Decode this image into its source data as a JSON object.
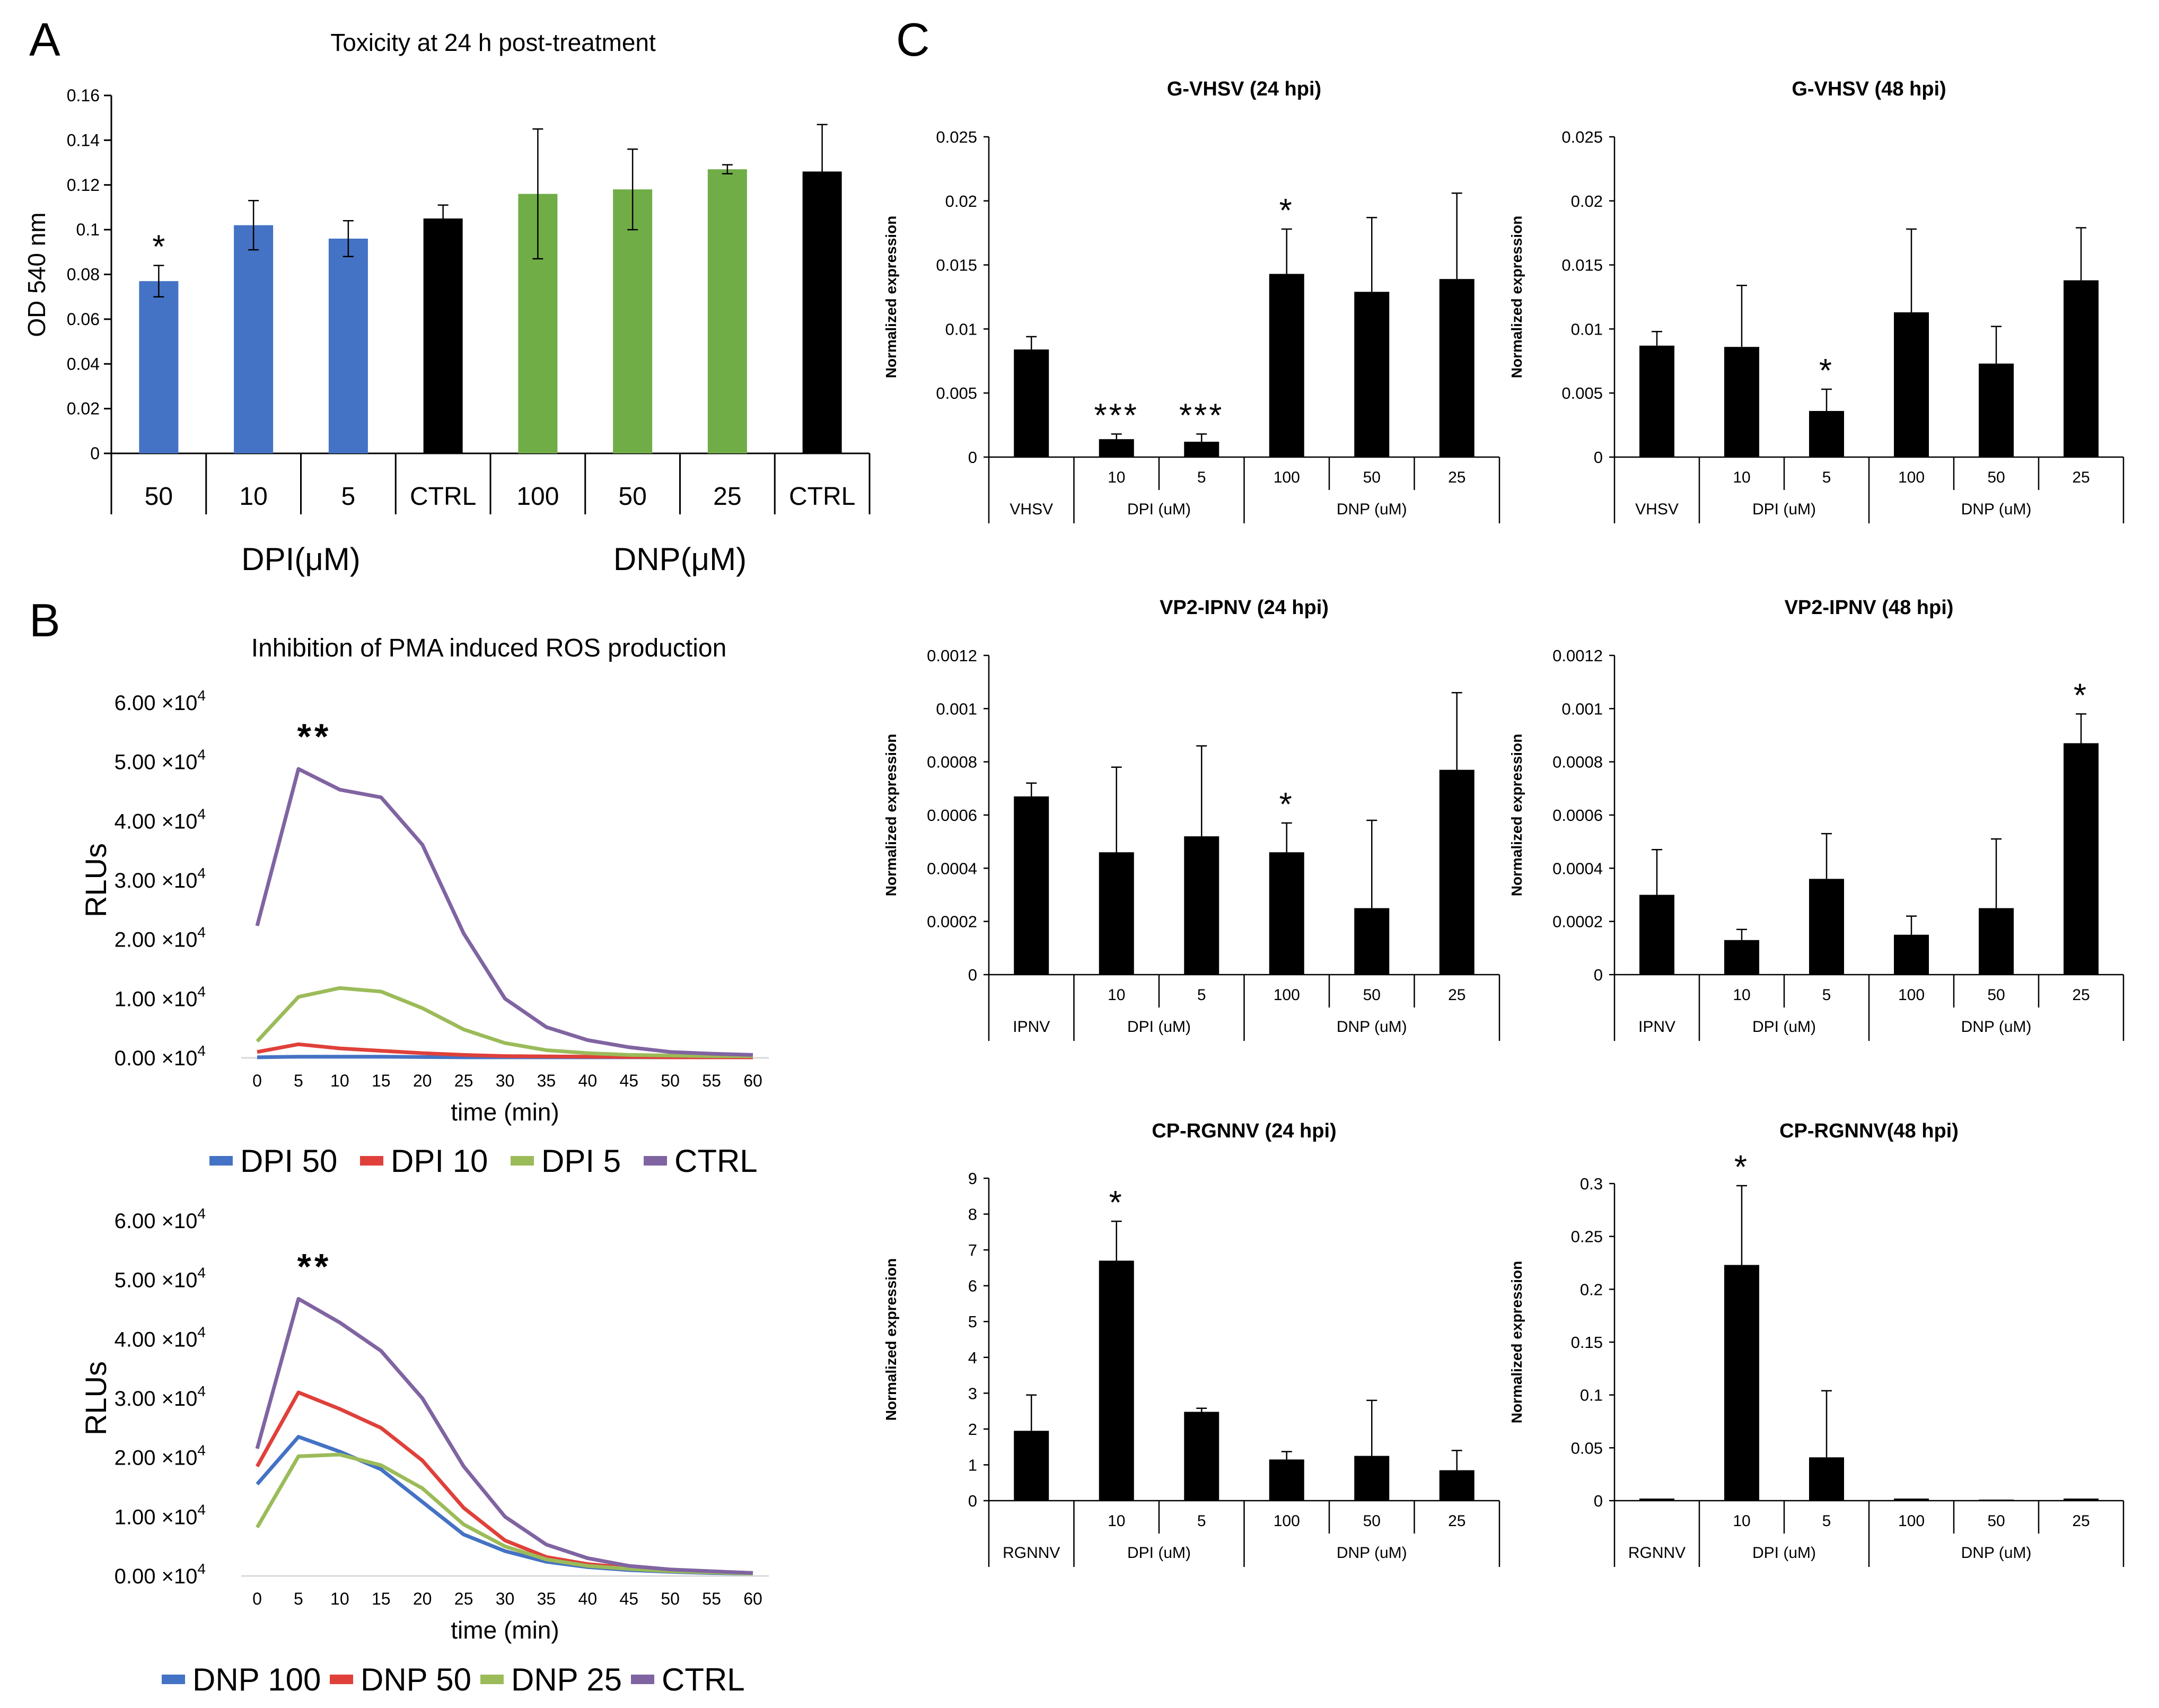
{
  "panel_labels": [
    "A",
    "B",
    "C"
  ],
  "chart_data": [
    {
      "id": "A",
      "type": "bar",
      "title": "Toxicity at 24 h post-treatment",
      "ylabel": "OD 540 nm",
      "ylim": [
        0,
        0.16
      ],
      "yticks": [
        "0",
        "0.02",
        "0.04",
        "0.06",
        "0.08",
        "0.1",
        "0.12",
        "0.14",
        "0.16"
      ],
      "categories": [
        "50",
        "10",
        "5",
        "CTRL",
        "100",
        "50",
        "25",
        "CTRL"
      ],
      "values": [
        0.077,
        0.102,
        0.096,
        0.105,
        0.116,
        0.118,
        0.127,
        0.126
      ],
      "errors": [
        0.007,
        0.011,
        0.008,
        0.006,
        0.029,
        0.018,
        0.002,
        0.021
      ],
      "colors": [
        "#4472c4",
        "#4472c4",
        "#4472c4",
        "#000000",
        "#70ad47",
        "#70ad47",
        "#70ad47",
        "#000000"
      ],
      "stars": [
        "*",
        "",
        "",
        "",
        "",
        "",
        "",
        ""
      ],
      "groups": [
        {
          "label": "DPI(μM)",
          "span": [
            0,
            3
          ]
        },
        {
          "label": "DNP(μM)",
          "span": [
            4,
            7
          ]
        }
      ]
    },
    {
      "id": "B1",
      "type": "line",
      "title": "Inhibition of PMA induced ROS production",
      "xlabel": "time (min)",
      "ylabel": "RLUs",
      "x": [
        0,
        5,
        10,
        15,
        20,
        25,
        30,
        35,
        40,
        45,
        50,
        55,
        60
      ],
      "ylim": [
        0,
        60000
      ],
      "ytick_mantissas": [
        "0.00",
        "1.00",
        "2.00",
        "3.00",
        "4.00",
        "5.00",
        "6.00"
      ],
      "exponent_label": "×10",
      "exponent": "4",
      "annotation": "**",
      "series": [
        {
          "name": "DPI 50",
          "color": "#4472c4",
          "values": [
            100,
            200,
            200,
            200,
            150,
            100,
            100,
            100,
            100,
            100,
            100,
            100,
            100
          ]
        },
        {
          "name": "DPI 10",
          "color": "#e0403a",
          "values": [
            1000,
            2300,
            1600,
            1200,
            800,
            500,
            300,
            250,
            200,
            150,
            100,
            100,
            100
          ]
        },
        {
          "name": "DPI 5",
          "color": "#9bbb59",
          "values": [
            2800,
            10300,
            11800,
            11200,
            8400,
            4800,
            2500,
            1300,
            800,
            500,
            400,
            300,
            300
          ]
        },
        {
          "name": "CTRL",
          "color": "#8064a2",
          "values": [
            22300,
            48800,
            45300,
            44000,
            36000,
            21000,
            10000,
            5200,
            3000,
            1800,
            1000,
            700,
            500
          ]
        }
      ]
    },
    {
      "id": "B2",
      "type": "line",
      "xlabel": "time (min)",
      "ylabel": "RLUs",
      "x": [
        0,
        5,
        10,
        15,
        20,
        25,
        30,
        35,
        40,
        45,
        50,
        55,
        60
      ],
      "ylim": [
        0,
        60000
      ],
      "ytick_mantissas": [
        "0.00",
        "1.00",
        "2.00",
        "3.00",
        "4.00",
        "5.00",
        "6.00"
      ],
      "exponent_label": "×10",
      "exponent": "4",
      "annotation": "**",
      "series": [
        {
          "name": "DNP 100",
          "color": "#4472c4",
          "values": [
            15500,
            23500,
            21000,
            18000,
            12500,
            7000,
            4200,
            2400,
            1500,
            1000,
            700,
            500,
            400
          ]
        },
        {
          "name": "DNP 50",
          "color": "#e0403a",
          "values": [
            18500,
            31000,
            28200,
            25000,
            19500,
            11500,
            6000,
            3200,
            2000,
            1400,
            1000,
            700,
            500
          ]
        },
        {
          "name": "DNP 25",
          "color": "#9bbb59",
          "values": [
            8200,
            20200,
            20500,
            18700,
            14800,
            8700,
            5000,
            2800,
            1700,
            1200,
            800,
            600,
            400
          ]
        },
        {
          "name": "CTRL",
          "color": "#8064a2",
          "values": [
            21500,
            46800,
            42800,
            38000,
            30000,
            18500,
            10000,
            5300,
            3000,
            1700,
            1100,
            800,
            500
          ]
        }
      ]
    },
    {
      "id": "C1",
      "type": "bar",
      "title": "G-VHSV (24 hpi)",
      "ylabel": "Normalized expression",
      "ylim": [
        0,
        0.025
      ],
      "yticks": [
        "0",
        "0.005",
        "0.01",
        "0.015",
        "0.02",
        "0.025"
      ],
      "categories": [
        "",
        "10",
        "5",
        "100",
        "50",
        "25"
      ],
      "values": [
        0.0084,
        0.0014,
        0.0012,
        0.0143,
        0.0129,
        0.0139
      ],
      "errors": [
        0.001,
        0.0004,
        0.0006,
        0.0035,
        0.0058,
        0.0067
      ],
      "stars": [
        "",
        "***",
        "***",
        "*",
        "",
        ""
      ],
      "groups": [
        {
          "label": "VHSV",
          "span": [
            0,
            0
          ]
        },
        {
          "label": "DPI (uM)",
          "span": [
            1,
            2
          ]
        },
        {
          "label": "DNP (uM)",
          "span": [
            3,
            5
          ]
        }
      ]
    },
    {
      "id": "C2",
      "type": "bar",
      "title": "G-VHSV (48 hpi)",
      "ylabel": "Normalized expression",
      "ylim": [
        0,
        0.025
      ],
      "yticks": [
        "0",
        "0.005",
        "0.01",
        "0.015",
        "0.02",
        "0.025"
      ],
      "categories": [
        "",
        "10",
        "5",
        "100",
        "50",
        "25"
      ],
      "values": [
        0.0087,
        0.0086,
        0.0036,
        0.0113,
        0.0073,
        0.0138
      ],
      "errors": [
        0.0011,
        0.0048,
        0.0017,
        0.0065,
        0.0029,
        0.0041
      ],
      "stars": [
        "",
        "",
        "*",
        "",
        "",
        ""
      ],
      "groups": [
        {
          "label": "VHSV",
          "span": [
            0,
            0
          ]
        },
        {
          "label": "DPI (uM)",
          "span": [
            1,
            2
          ]
        },
        {
          "label": "DNP (uM)",
          "span": [
            3,
            5
          ]
        }
      ]
    },
    {
      "id": "C3",
      "type": "bar",
      "title": "VP2-IPNV (24 hpi)",
      "ylabel": "Normalized expression",
      "ylim": [
        0,
        0.0012
      ],
      "yticks": [
        "0",
        "0.0002",
        "0.0004",
        "0.0006",
        "0.0008",
        "0.001",
        "0.0012"
      ],
      "categories": [
        "",
        "10",
        "5",
        "100",
        "50",
        "25"
      ],
      "values": [
        0.00067,
        0.00046,
        0.00052,
        0.00046,
        0.00025,
        0.00077
      ],
      "errors": [
        5e-05,
        0.00032,
        0.00034,
        0.00011,
        0.00033,
        0.00029
      ],
      "stars": [
        "",
        "",
        "",
        "*",
        "",
        ""
      ],
      "groups": [
        {
          "label": "IPNV",
          "span": [
            0,
            0
          ]
        },
        {
          "label": "DPI (uM)",
          "span": [
            1,
            2
          ]
        },
        {
          "label": "DNP (uM)",
          "span": [
            3,
            5
          ]
        }
      ]
    },
    {
      "id": "C4",
      "type": "bar",
      "title": "VP2-IPNV (48 hpi)",
      "ylabel": "Normalized expression",
      "ylim": [
        0,
        0.0012
      ],
      "yticks": [
        "0",
        "0.0002",
        "0.0004",
        "0.0006",
        "0.0008",
        "0.001",
        "0.0012"
      ],
      "categories": [
        "",
        "10",
        "5",
        "100",
        "50",
        "25"
      ],
      "values": [
        0.0003,
        0.00013,
        0.00036,
        0.00015,
        0.00025,
        0.00087
      ],
      "errors": [
        0.00017,
        4e-05,
        0.00017,
        7e-05,
        0.00026,
        0.00011
      ],
      "stars": [
        "",
        "",
        "",
        "",
        "",
        "*"
      ],
      "groups": [
        {
          "label": "IPNV",
          "span": [
            0,
            0
          ]
        },
        {
          "label": "DPI (uM)",
          "span": [
            1,
            2
          ]
        },
        {
          "label": "DNP (uM)",
          "span": [
            3,
            5
          ]
        }
      ]
    },
    {
      "id": "C5",
      "type": "bar",
      "title": "CP-RGNNV (24 hpi)",
      "ylabel": "Normalized expression",
      "ylim": [
        0,
        9
      ],
      "yticks": [
        "0",
        "1",
        "2",
        "3",
        "4",
        "5",
        "6",
        "7",
        "8",
        "9"
      ],
      "categories": [
        "",
        "10",
        "5",
        "100",
        "50",
        "25"
      ],
      "values": [
        1.95,
        6.7,
        2.48,
        1.15,
        1.25,
        0.85
      ],
      "errors": [
        1.0,
        1.1,
        0.1,
        0.22,
        1.55,
        0.55
      ],
      "stars": [
        "",
        "*",
        "",
        "",
        "",
        ""
      ],
      "groups": [
        {
          "label": "RGNNV",
          "span": [
            0,
            0
          ]
        },
        {
          "label": "DPI (uM)",
          "span": [
            1,
            2
          ]
        },
        {
          "label": "DNP (uM)",
          "span": [
            3,
            5
          ]
        }
      ]
    },
    {
      "id": "C6",
      "type": "bar",
      "title": "CP-RGNNV(48 hpi)",
      "ylabel": "Normalized expression",
      "ylim": [
        0,
        0.3
      ],
      "yticks": [
        "0",
        "0.05",
        "0.1",
        "0.15",
        "0.2",
        "0.25",
        "0.3"
      ],
      "categories": [
        "",
        "10",
        "5",
        "100",
        "50",
        "25"
      ],
      "values": [
        0.002,
        0.223,
        0.041,
        0.002,
        0.001,
        0.002
      ],
      "errors": [
        0.0,
        0.075,
        0.063,
        0.0,
        0.0,
        0.0
      ],
      "stars": [
        "",
        "*",
        "",
        "",
        "",
        ""
      ],
      "groups": [
        {
          "label": "RGNNV",
          "span": [
            0,
            0
          ]
        },
        {
          "label": "DPI (uM)",
          "span": [
            1,
            2
          ]
        },
        {
          "label": "DNP (uM)",
          "span": [
            3,
            5
          ]
        }
      ]
    }
  ]
}
